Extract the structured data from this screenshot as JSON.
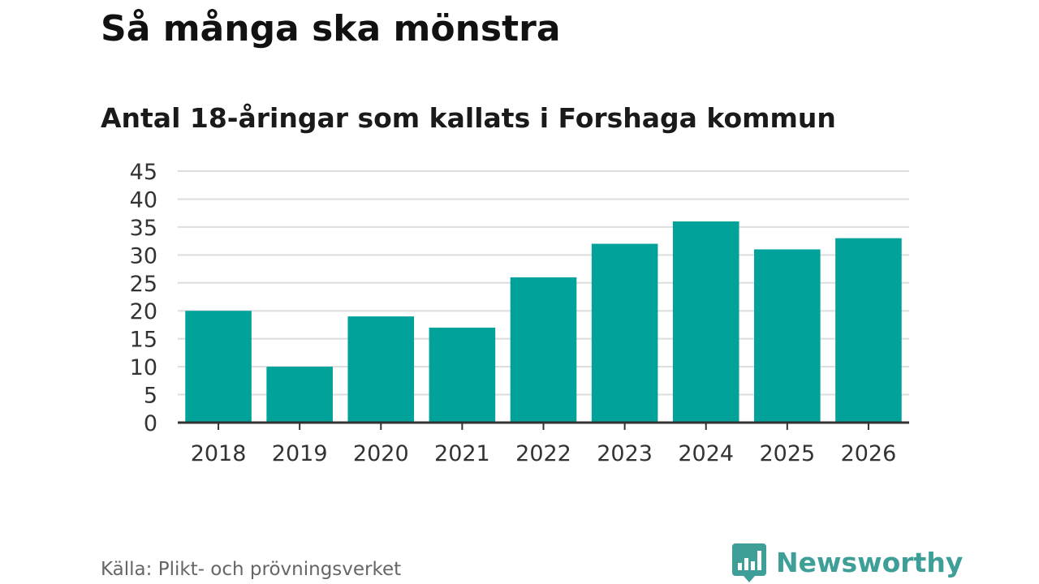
{
  "header": {
    "title": "Så många ska mönstra",
    "subtitle": "Antal 18-åringar som kallats i Forshaga kommun"
  },
  "footer": {
    "source": "Källa: Plikt- och prövningsverket",
    "brand": "Newsworthy"
  },
  "colors": {
    "bar": "#00a29a",
    "brand": "#3d9f97",
    "gridline": "#dddddd",
    "axis": "#333333"
  },
  "icons": {
    "brand_logo": "newsworthy-logo-icon"
  },
  "chart_data": {
    "type": "bar",
    "title": "",
    "xlabel": "",
    "ylabel": "",
    "categories": [
      "2018",
      "2019",
      "2020",
      "2021",
      "2022",
      "2023",
      "2024",
      "2025",
      "2026"
    ],
    "values": [
      20,
      10,
      19,
      17,
      26,
      32,
      36,
      31,
      33
    ],
    "ylim": [
      0,
      45
    ],
    "yticks": [
      "0",
      "5",
      "10",
      "15",
      "20",
      "25",
      "30",
      "35",
      "40",
      "45"
    ],
    "grid": true,
    "legend": "none"
  }
}
